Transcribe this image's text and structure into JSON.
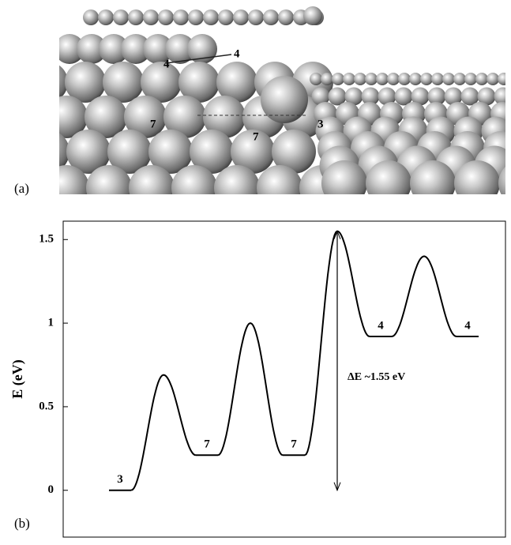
{
  "panel_labels": {
    "a": "(a)",
    "b": "(b)"
  },
  "image_labels": [
    "4",
    "4",
    "7",
    "7",
    "3"
  ],
  "chart_data": {
    "type": "line",
    "y_label": "E (eV)",
    "annotation": "ΔE ~1.55 eV",
    "categories": [
      "3",
      null,
      "7",
      null,
      "7",
      null,
      "4",
      null,
      "4"
    ],
    "values": [
      0,
      0.69,
      0.21,
      1.0,
      0.21,
      1.55,
      0.92,
      1.4,
      0.92
    ],
    "color": "#000000",
    "ylim": [
      -0.28,
      1.61
    ],
    "yticks": [
      0,
      0.5,
      1,
      1.5
    ]
  }
}
